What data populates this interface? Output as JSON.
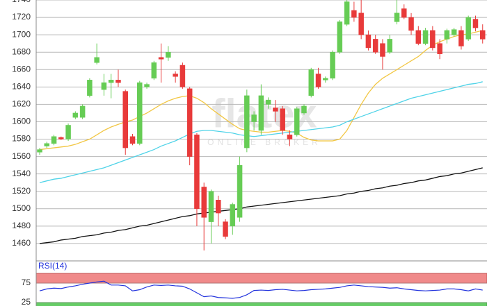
{
  "chart_data": [
    {
      "type": "candlestick",
      "open": [
        1565,
        1572,
        1575,
        1582,
        1580,
        1605,
        1605,
        1630,
        1668,
        1637,
        1645,
        1648,
        1635,
        1583,
        1575,
        1640,
        1650,
        1674,
        1674,
        1655,
        1665,
        1638,
        1585,
        1525,
        1485,
        1510,
        1485,
        1480,
        1490,
        1570,
        1600,
        1590,
        1620,
        1616,
        1615,
        1585,
        1585,
        1610,
        1630,
        1655,
        1648,
        1650,
        1680,
        1712,
        1728,
        1725,
        1700,
        1695,
        1690,
        1680,
        1715,
        1730,
        1720,
        1705,
        1690,
        1705,
        1690,
        1695,
        1700,
        1705,
        1695,
        1718,
        1705
      ],
      "high": [
        1570,
        1577,
        1585,
        1583,
        1598,
        1612,
        1620,
        1650,
        1690,
        1655,
        1655,
        1660,
        1637,
        1586,
        1647,
        1645,
        1670,
        1690,
        1687,
        1658,
        1668,
        1640,
        1587,
        1530,
        1522,
        1515,
        1488,
        1507,
        1560,
        1637,
        1612,
        1643,
        1628,
        1625,
        1618,
        1590,
        1617,
        1620,
        1662,
        1662,
        1652,
        1682,
        1717,
        1740,
        1738,
        1740,
        1705,
        1700,
        1695,
        1700,
        1740,
        1735,
        1725,
        1710,
        1708,
        1710,
        1695,
        1707,
        1708,
        1710,
        1722,
        1722,
        1712
      ],
      "low": [
        1562,
        1570,
        1573,
        1579,
        1578,
        1603,
        1603,
        1628,
        1666,
        1630,
        1627,
        1640,
        1562,
        1573,
        1573,
        1638,
        1648,
        1645,
        1670,
        1645,
        1638,
        1550,
        1480,
        1452,
        1460,
        1480,
        1465,
        1470,
        1485,
        1565,
        1590,
        1585,
        1615,
        1600,
        1585,
        1572,
        1583,
        1608,
        1628,
        1638,
        1645,
        1648,
        1678,
        1710,
        1715,
        1695,
        1682,
        1678,
        1660,
        1678,
        1712,
        1718,
        1700,
        1688,
        1688,
        1682,
        1672,
        1690,
        1698,
        1683,
        1693,
        1704,
        1690
      ],
      "close": [
        1568,
        1575,
        1583,
        1580,
        1596,
        1610,
        1618,
        1648,
        1674,
        1645,
        1648,
        1645,
        1570,
        1575,
        1645,
        1643,
        1668,
        1672,
        1680,
        1652,
        1640,
        1560,
        1500,
        1490,
        1520,
        1495,
        1468,
        1505,
        1550,
        1630,
        1608,
        1630,
        1625,
        1612,
        1590,
        1580,
        1615,
        1618,
        1660,
        1640,
        1650,
        1680,
        1715,
        1738,
        1720,
        1700,
        1685,
        1680,
        1675,
        1695,
        1725,
        1720,
        1705,
        1690,
        1705,
        1685,
        1678,
        1705,
        1706,
        1687,
        1720,
        1708,
        1695
      ],
      "up_color": "#66cc55",
      "down_color": "#e83a3a",
      "ylim": [
        1440,
        1740
      ],
      "yticks": [
        1460,
        1480,
        1500,
        1520,
        1540,
        1560,
        1580,
        1600,
        1620,
        1640,
        1660,
        1680,
        1700,
        1720,
        1740
      ],
      "grid": true,
      "series": [
        {
          "color": "#f2c744",
          "values": [
            1568,
            1569,
            1570,
            1571,
            1572,
            1574,
            1577,
            1580,
            1585,
            1590,
            1594,
            1597,
            1600,
            1602,
            1606,
            1610,
            1615,
            1620,
            1624,
            1627,
            1629,
            1630,
            1627,
            1622,
            1615,
            1609,
            1603,
            1597,
            1592,
            1590,
            1589,
            1588,
            1588,
            1589,
            1590,
            1589,
            1587,
            1582,
            1579,
            1578,
            1578,
            1578,
            1580,
            1590,
            1605,
            1620,
            1633,
            1643,
            1650,
            1655,
            1660,
            1665,
            1670,
            1675,
            1682,
            1688,
            1692,
            1695,
            1698,
            1700,
            1701,
            1703,
            1705
          ]
        },
        {
          "color": "#4fd3e8",
          "values": [
            1530,
            1532,
            1534,
            1535,
            1537,
            1539,
            1541,
            1543,
            1545,
            1547,
            1550,
            1553,
            1556,
            1559,
            1562,
            1565,
            1568,
            1572,
            1575,
            1578,
            1582,
            1586,
            1589,
            1590,
            1590,
            1589,
            1588,
            1587,
            1585,
            1584,
            1583,
            1584,
            1585,
            1586,
            1587,
            1588,
            1589,
            1590,
            1591,
            1592,
            1593,
            1594,
            1596,
            1600,
            1603,
            1606,
            1609,
            1612,
            1615,
            1618,
            1621,
            1624,
            1627,
            1629,
            1631,
            1633,
            1635,
            1637,
            1639,
            1641,
            1643,
            1644,
            1646
          ]
        },
        {
          "color": "#111111",
          "values": [
            1460,
            1461,
            1462,
            1464,
            1465,
            1466,
            1468,
            1469,
            1470,
            1472,
            1473,
            1475,
            1476,
            1478,
            1480,
            1481,
            1483,
            1485,
            1487,
            1489,
            1491,
            1492,
            1494,
            1495,
            1496,
            1497,
            1498,
            1499,
            1500,
            1502,
            1503,
            1504,
            1505,
            1506,
            1507,
            1508,
            1509,
            1510,
            1511,
            1512,
            1513,
            1514,
            1515,
            1517,
            1518,
            1520,
            1521,
            1523,
            1524,
            1526,
            1527,
            1529,
            1530,
            1532,
            1533,
            1535,
            1537,
            1538,
            1540,
            1541,
            1543,
            1545,
            1547
          ]
        }
      ],
      "watermark": {
        "brand": "flatex",
        "tagline": "ONLINE BROKER"
      }
    },
    {
      "type": "line",
      "title": "RSI(14)",
      "values": [
        55,
        60,
        62,
        61,
        65,
        68,
        72,
        75,
        78,
        80,
        70,
        70,
        68,
        55,
        58,
        65,
        70,
        69,
        70,
        68,
        67,
        60,
        50,
        40,
        42,
        38,
        37,
        36,
        38,
        45,
        56,
        57,
        56,
        58,
        59,
        57,
        55,
        56,
        58,
        59,
        60,
        62,
        64,
        68,
        70,
        68,
        66,
        65,
        64,
        62,
        63,
        60,
        58,
        56,
        55,
        56,
        57,
        60,
        60,
        58,
        55,
        60,
        57
      ],
      "color": "#2233dd",
      "upper_band_color": "#f08a8a",
      "lower_band_color": "#66cc66",
      "ylim": [
        15,
        100
      ],
      "yticks": [
        25,
        75
      ]
    }
  ]
}
